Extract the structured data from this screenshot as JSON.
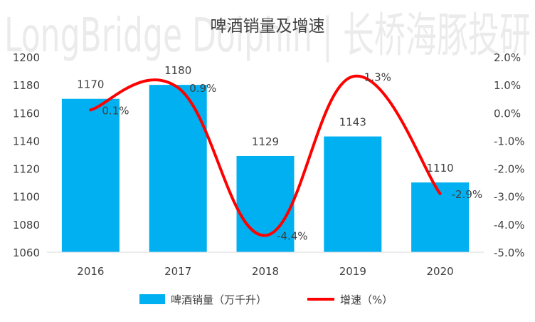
{
  "watermark": {
    "text": "LongBridge Dolphin | 长桥海豚投研"
  },
  "chart_data": {
    "type": "bar",
    "title": "啤酒销量及增速",
    "categories": [
      "2016",
      "2017",
      "2018",
      "2019",
      "2020"
    ],
    "series": [
      {
        "name": "啤酒销量（万千升）",
        "type": "bar",
        "axis": "left",
        "color": "#00b0f0",
        "values": [
          1170,
          1180,
          1129,
          1143,
          1110
        ],
        "labels": [
          "1170",
          "1180",
          "1129",
          "1143",
          "1110"
        ]
      },
      {
        "name": "增速（%）",
        "type": "line",
        "axis": "right",
        "color": "#ff0000",
        "values": [
          0.1,
          0.9,
          -4.4,
          1.3,
          -2.9
        ],
        "labels": [
          "0.1%",
          "0.9%",
          "-4.4%",
          "1.3%",
          "-2.9%"
        ]
      }
    ],
    "y_left": {
      "min": 1060,
      "max": 1200,
      "ticks": [
        "1060",
        "1080",
        "1100",
        "1120",
        "1140",
        "1160",
        "1180",
        "1200"
      ]
    },
    "y_right": {
      "min": -5,
      "max": 2,
      "ticks": [
        "-5.0%",
        "-4.0%",
        "-3.0%",
        "-2.0%",
        "-1.0%",
        "0.0%",
        "1.0%",
        "2.0%"
      ]
    },
    "legend_position": "bottom",
    "grid": false
  }
}
